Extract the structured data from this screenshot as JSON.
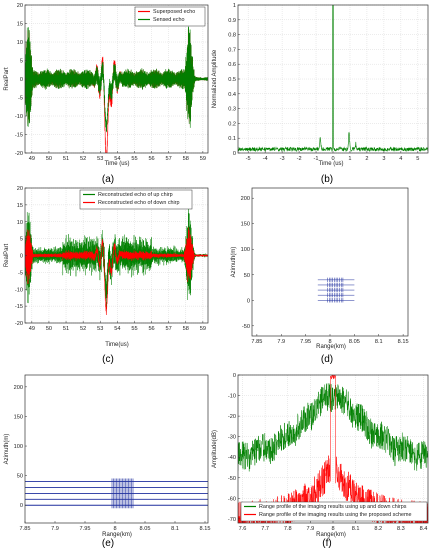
{
  "chart_data": [
    {
      "panel": "a",
      "type": "line",
      "caption": "(a)",
      "xlabel": "Time (us)",
      "ylabel": "RealPart",
      "xlim": [
        48.6,
        59.3
      ],
      "ylim": [
        -20,
        20
      ],
      "xticks": [
        49,
        50,
        51,
        52,
        53,
        54,
        55,
        56,
        57,
        58,
        59
      ],
      "yticks": [
        -20,
        -15,
        -10,
        -5,
        0,
        5,
        10,
        15,
        20
      ],
      "grid": true,
      "legend": "top-right",
      "series": [
        {
          "name": "Superposed echo",
          "color": "#ff0000"
        },
        {
          "name": "Sensed echo",
          "color": "#008000"
        }
      ],
      "features": {
        "edge_bursts_x": [
          48.8,
          58.2
        ],
        "edge_peak": 17,
        "chirp_center_x": 53.4,
        "chirp_min": -19,
        "carrier_amplitude": 3
      }
    },
    {
      "panel": "b",
      "type": "line",
      "caption": "(b)",
      "xlabel": "Time (us)",
      "ylabel": "Normalized Amplitude",
      "xlim": [
        -5.6,
        5.6
      ],
      "ylim": [
        0,
        1
      ],
      "xticks": [
        -5,
        -4,
        -3,
        -2,
        -1,
        0,
        1,
        2,
        3,
        4,
        5
      ],
      "yticks": [
        0,
        0.1,
        0.2,
        0.3,
        0.4,
        0.5,
        0.6,
        0.7,
        0.8,
        0.9,
        1
      ],
      "grid": true,
      "series": [
        {
          "name": "",
          "color": "#008000"
        }
      ],
      "features": {
        "main_peak_x": 0,
        "main_peak_y": 1,
        "floor": 0.03,
        "sidelobes": [
          [
            -0.75,
            0.13
          ],
          [
            0.95,
            0.16
          ],
          [
            1.35,
            0.08
          ]
        ]
      }
    },
    {
      "panel": "c",
      "type": "line",
      "caption": "(c)",
      "xlabel": "Time(us)",
      "ylabel": "RealPart",
      "xlim": [
        48.6,
        59.3
      ],
      "ylim": [
        -20,
        20
      ],
      "xticks": [
        49,
        50,
        51,
        52,
        53,
        54,
        55,
        56,
        57,
        58,
        59
      ],
      "yticks": [
        -20,
        -15,
        -10,
        -5,
        0,
        5,
        10,
        15,
        20
      ],
      "grid": true,
      "legend": "top-center",
      "series": [
        {
          "name": "Reconstructed echo of up chirp",
          "color": "#008000"
        },
        {
          "name": "Reconstructed echo of down chirp",
          "color": "#ff0000"
        }
      ],
      "features": {
        "edge_bursts_x": [
          48.8,
          58.2
        ],
        "edge_peak": 16,
        "chirp_center_x": 53.4,
        "chirp_min": -15,
        "noise_amplitude": 7
      }
    },
    {
      "panel": "d",
      "type": "scatter",
      "caption": "(d)",
      "xlabel": "Range(km)",
      "ylabel": "Azimuth(m)",
      "xlim": [
        7.84,
        8.16
      ],
      "ylim": [
        -70,
        220
      ],
      "xticks": [
        7.85,
        7.9,
        7.95,
        8,
        8.05,
        8.1,
        8.15
      ],
      "yticks": [
        -50,
        0,
        50,
        100,
        150,
        200
      ],
      "grid": false,
      "series": [
        {
          "name": "",
          "color": "#1f2f9e"
        }
      ],
      "features": {
        "rows_y": [
          0,
          10,
          20,
          30,
          40
        ],
        "x_range": [
          7.995,
          8.03
        ],
        "column_x": [
          8.0,
          8.01,
          8.02
        ]
      }
    },
    {
      "panel": "e",
      "type": "scatter",
      "caption": "(e)",
      "xlabel": "Range(km)",
      "ylabel": "Azimuth(m)",
      "xlim": [
        7.85,
        8.155
      ],
      "ylim": [
        -30,
        220
      ],
      "xticks": [
        7.85,
        7.9,
        7.95,
        8,
        8.05,
        8.1,
        8.15
      ],
      "yticks": [
        0,
        50,
        100,
        150,
        200
      ],
      "grid": false,
      "series": [
        {
          "name": "",
          "color": "#1f2f9e"
        }
      ],
      "features": {
        "rows_y": [
          0,
          10,
          20,
          30,
          40
        ],
        "dense_x": [
          7.995,
          8.03
        ]
      }
    },
    {
      "panel": "f",
      "type": "line",
      "caption": "(f)",
      "xlabel": "Range(km)",
      "ylabel": "Amplitude(dB)",
      "xlim": [
        7.58,
        8.42
      ],
      "ylim": [
        -72,
        0
      ],
      "xticks": [
        7.6,
        7.7,
        7.8,
        7.9,
        8,
        8.1,
        8.2,
        8.3,
        8.4
      ],
      "yticks": [
        -70,
        -60,
        -50,
        -40,
        -30,
        -20,
        -10,
        0
      ],
      "grid": true,
      "legend": "bottom",
      "series": [
        {
          "name": "Range profile of the imaging results using up and down chirps",
          "color": "#008000"
        },
        {
          "name": "Range profile of the imaging results using the proposed scheme",
          "color": "#ff0000"
        }
      ],
      "features": {
        "peak_x": 8.0,
        "peak_y": 0
      }
    }
  ]
}
